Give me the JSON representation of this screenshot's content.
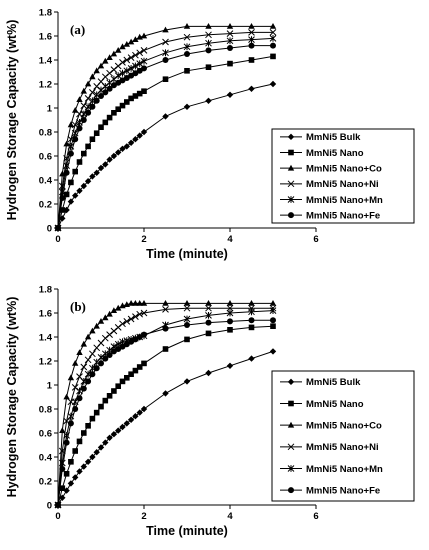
{
  "chart_data": [
    {
      "type": "line",
      "panel_label": "(a)",
      "xlabel": "Time (minute)",
      "ylabel": "Hydrogen Storage Capacity (wt%)",
      "xlim": [
        0,
        6
      ],
      "ylim": [
        0,
        1.8
      ],
      "xticks": [
        0,
        2,
        4,
        6
      ],
      "yticks": [
        0,
        0.2,
        0.4,
        0.6,
        0.8,
        1,
        1.2,
        1.4,
        1.6,
        1.8
      ],
      "ytick_labels": [
        "0",
        "0.2",
        "0.4",
        "0.6",
        "0.8",
        "1",
        "1.2",
        "1.4",
        "1.6",
        "1.8"
      ],
      "grid": false,
      "legend_position": "right",
      "series": [
        {
          "name": "MmNi5 Bulk",
          "marker": "diamond",
          "x": [
            0,
            0.1,
            0.2,
            0.3,
            0.4,
            0.5,
            0.6,
            0.7,
            0.8,
            0.9,
            1.0,
            1.1,
            1.2,
            1.3,
            1.4,
            1.5,
            1.6,
            1.7,
            1.8,
            1.9,
            2.0,
            2.5,
            3.0,
            3.5,
            4.0,
            4.5,
            5.0
          ],
          "y": [
            0,
            0.08,
            0.15,
            0.22,
            0.27,
            0.31,
            0.35,
            0.39,
            0.43,
            0.46,
            0.5,
            0.53,
            0.57,
            0.6,
            0.63,
            0.66,
            0.68,
            0.71,
            0.74,
            0.77,
            0.8,
            0.93,
            1.01,
            1.06,
            1.11,
            1.16,
            1.2
          ]
        },
        {
          "name": "MmNi5 Nano",
          "marker": "square",
          "x": [
            0,
            0.1,
            0.2,
            0.3,
            0.4,
            0.5,
            0.6,
            0.7,
            0.8,
            0.9,
            1.0,
            1.1,
            1.2,
            1.3,
            1.4,
            1.5,
            1.6,
            1.7,
            1.8,
            1.9,
            2.0,
            2.5,
            3.0,
            3.5,
            4.0,
            4.5,
            5.0
          ],
          "y": [
            0,
            0.15,
            0.28,
            0.38,
            0.47,
            0.55,
            0.62,
            0.68,
            0.74,
            0.79,
            0.84,
            0.88,
            0.92,
            0.96,
            0.99,
            1.02,
            1.05,
            1.08,
            1.1,
            1.12,
            1.14,
            1.24,
            1.31,
            1.34,
            1.37,
            1.4,
            1.43
          ]
        },
        {
          "name": "MmNi5 Nano+Co",
          "marker": "triangle",
          "x": [
            0,
            0.1,
            0.2,
            0.3,
            0.4,
            0.5,
            0.6,
            0.7,
            0.8,
            0.9,
            1.0,
            1.1,
            1.2,
            1.3,
            1.4,
            1.5,
            1.6,
            1.7,
            1.8,
            1.9,
            2.0,
            2.5,
            3.0,
            3.5,
            4.0,
            4.5,
            5.0
          ],
          "y": [
            0,
            0.45,
            0.7,
            0.86,
            0.98,
            1.07,
            1.14,
            1.2,
            1.26,
            1.31,
            1.35,
            1.39,
            1.42,
            1.45,
            1.48,
            1.51,
            1.53,
            1.55,
            1.57,
            1.59,
            1.6,
            1.65,
            1.68,
            1.68,
            1.68,
            1.68,
            1.68
          ]
        },
        {
          "name": "MmNi5 Nano+Ni",
          "marker": "x",
          "x": [
            0,
            0.1,
            0.2,
            0.3,
            0.4,
            0.5,
            0.6,
            0.7,
            0.8,
            0.9,
            1.0,
            1.1,
            1.2,
            1.3,
            1.4,
            1.5,
            1.6,
            1.7,
            1.8,
            1.9,
            2.0,
            2.5,
            3.0,
            3.5,
            4.0,
            4.5,
            5.0
          ],
          "y": [
            0,
            0.35,
            0.58,
            0.74,
            0.86,
            0.95,
            1.02,
            1.08,
            1.13,
            1.18,
            1.22,
            1.26,
            1.29,
            1.32,
            1.35,
            1.38,
            1.4,
            1.42,
            1.44,
            1.46,
            1.48,
            1.55,
            1.59,
            1.61,
            1.62,
            1.63,
            1.63
          ]
        },
        {
          "name": "MmNi5 Nano+Mn",
          "marker": "star",
          "x": [
            0,
            0.1,
            0.2,
            0.3,
            0.4,
            0.5,
            0.6,
            0.7,
            0.8,
            0.9,
            1.0,
            1.1,
            1.2,
            1.3,
            1.4,
            1.5,
            1.6,
            1.7,
            1.8,
            1.9,
            2.0,
            2.5,
            3.0,
            3.5,
            4.0,
            4.5,
            5.0
          ],
          "y": [
            0,
            0.3,
            0.52,
            0.68,
            0.79,
            0.88,
            0.95,
            1.01,
            1.06,
            1.11,
            1.15,
            1.18,
            1.21,
            1.24,
            1.27,
            1.29,
            1.31,
            1.33,
            1.35,
            1.37,
            1.39,
            1.46,
            1.51,
            1.54,
            1.56,
            1.57,
            1.58
          ]
        },
        {
          "name": "MmNi5 Nano+Fe",
          "marker": "circle",
          "x": [
            0,
            0.1,
            0.2,
            0.3,
            0.4,
            0.5,
            0.6,
            0.7,
            0.8,
            0.9,
            1.0,
            1.1,
            1.2,
            1.3,
            1.4,
            1.5,
            1.6,
            1.7,
            1.8,
            1.9,
            2.0,
            2.5,
            3.0,
            3.5,
            4.0,
            4.5,
            5.0
          ],
          "y": [
            0,
            0.25,
            0.46,
            0.62,
            0.74,
            0.83,
            0.9,
            0.96,
            1.01,
            1.06,
            1.1,
            1.13,
            1.16,
            1.19,
            1.21,
            1.23,
            1.25,
            1.27,
            1.29,
            1.31,
            1.33,
            1.4,
            1.45,
            1.48,
            1.5,
            1.52,
            1.52
          ]
        }
      ]
    },
    {
      "type": "line",
      "panel_label": "(b)",
      "xlabel": "Time (minute)",
      "ylabel": "Hydrogen Storage Capacity (wt%)",
      "xlim": [
        0,
        6
      ],
      "ylim": [
        0,
        1.8
      ],
      "xticks": [
        0,
        2,
        4,
        6
      ],
      "yticks": [
        0,
        0.2,
        0.4,
        0.6,
        0.8,
        1,
        1.2,
        1.4,
        1.6,
        1.8
      ],
      "ytick_labels": [
        "0",
        "0.2",
        "0.4",
        "0.6",
        "0.8",
        "1",
        "1.2",
        "1.4",
        "1.6",
        "1.8"
      ],
      "grid": false,
      "legend_position": "right",
      "series": [
        {
          "name": "MmNi5 Bulk",
          "marker": "diamond",
          "x": [
            0,
            0.1,
            0.2,
            0.3,
            0.4,
            0.5,
            0.6,
            0.7,
            0.8,
            0.9,
            1.0,
            1.1,
            1.2,
            1.3,
            1.4,
            1.5,
            1.6,
            1.7,
            1.8,
            1.9,
            2.0,
            2.5,
            3.0,
            3.5,
            4.0,
            4.5,
            5.0
          ],
          "y": [
            0,
            0.06,
            0.12,
            0.18,
            0.23,
            0.28,
            0.32,
            0.36,
            0.4,
            0.44,
            0.48,
            0.52,
            0.56,
            0.59,
            0.62,
            0.65,
            0.68,
            0.71,
            0.74,
            0.77,
            0.8,
            0.93,
            1.03,
            1.1,
            1.16,
            1.22,
            1.28
          ]
        },
        {
          "name": "MmNi5 Nano",
          "marker": "square",
          "x": [
            0,
            0.1,
            0.2,
            0.3,
            0.4,
            0.5,
            0.6,
            0.7,
            0.8,
            0.9,
            1.0,
            1.1,
            1.2,
            1.3,
            1.4,
            1.5,
            1.6,
            1.7,
            1.8,
            1.9,
            2.0,
            2.5,
            3.0,
            3.5,
            4.0,
            4.5,
            5.0
          ],
          "y": [
            0,
            0.14,
            0.26,
            0.36,
            0.45,
            0.53,
            0.6,
            0.66,
            0.72,
            0.77,
            0.82,
            0.87,
            0.91,
            0.95,
            0.99,
            1.03,
            1.06,
            1.09,
            1.12,
            1.15,
            1.18,
            1.3,
            1.38,
            1.43,
            1.46,
            1.48,
            1.49
          ]
        },
        {
          "name": "MmNi5 Nano+Co",
          "marker": "triangle",
          "x": [
            0,
            0.1,
            0.2,
            0.3,
            0.4,
            0.5,
            0.6,
            0.7,
            0.8,
            0.9,
            1.0,
            1.1,
            1.2,
            1.3,
            1.4,
            1.5,
            1.6,
            1.7,
            1.8,
            1.9,
            2.0,
            2.5,
            3.0,
            3.5,
            4.0,
            4.5,
            5.0
          ],
          "y": [
            0,
            0.62,
            0.9,
            1.06,
            1.18,
            1.27,
            1.34,
            1.4,
            1.45,
            1.49,
            1.53,
            1.56,
            1.59,
            1.62,
            1.64,
            1.66,
            1.67,
            1.68,
            1.68,
            1.68,
            1.68,
            1.68,
            1.68,
            1.68,
            1.68,
            1.68,
            1.68
          ]
        },
        {
          "name": "MmNi5 Nano+Ni",
          "marker": "x",
          "x": [
            0,
            0.1,
            0.2,
            0.3,
            0.4,
            0.5,
            0.6,
            0.7,
            0.8,
            0.9,
            1.0,
            1.1,
            1.2,
            1.3,
            1.4,
            1.5,
            1.6,
            1.7,
            1.8,
            1.9,
            2.0,
            2.5,
            3.0,
            3.5,
            4.0,
            4.5,
            5.0
          ],
          "y": [
            0,
            0.45,
            0.7,
            0.86,
            0.98,
            1.07,
            1.15,
            1.21,
            1.26,
            1.31,
            1.35,
            1.39,
            1.42,
            1.45,
            1.48,
            1.51,
            1.53,
            1.55,
            1.57,
            1.59,
            1.6,
            1.63,
            1.64,
            1.64,
            1.64,
            1.64,
            1.64
          ]
        },
        {
          "name": "MmNi5 Nano+Mn",
          "marker": "star",
          "x": [
            0,
            0.1,
            0.2,
            0.3,
            0.4,
            0.5,
            0.6,
            0.7,
            0.8,
            0.9,
            1.0,
            1.1,
            1.2,
            1.3,
            1.4,
            1.5,
            1.6,
            1.7,
            1.8,
            1.9,
            2.0,
            2.5,
            3.0,
            3.5,
            4.0,
            4.5,
            5.0
          ],
          "y": [
            0,
            0.35,
            0.58,
            0.74,
            0.86,
            0.95,
            1.03,
            1.09,
            1.14,
            1.19,
            1.23,
            1.26,
            1.29,
            1.32,
            1.34,
            1.36,
            1.37,
            1.38,
            1.39,
            1.4,
            1.41,
            1.5,
            1.55,
            1.58,
            1.6,
            1.61,
            1.62
          ]
        },
        {
          "name": "MmNi5 Nano+Fe",
          "marker": "circle",
          "x": [
            0,
            0.1,
            0.2,
            0.3,
            0.4,
            0.5,
            0.6,
            0.7,
            0.8,
            0.9,
            1.0,
            1.1,
            1.2,
            1.3,
            1.4,
            1.5,
            1.6,
            1.7,
            1.8,
            1.9,
            2.0,
            2.5,
            3.0,
            3.5,
            4.0,
            4.5,
            5.0
          ],
          "y": [
            0,
            0.3,
            0.52,
            0.68,
            0.8,
            0.89,
            0.97,
            1.03,
            1.09,
            1.14,
            1.18,
            1.22,
            1.25,
            1.28,
            1.3,
            1.32,
            1.34,
            1.36,
            1.38,
            1.4,
            1.42,
            1.47,
            1.5,
            1.52,
            1.53,
            1.54,
            1.54
          ]
        }
      ]
    }
  ]
}
